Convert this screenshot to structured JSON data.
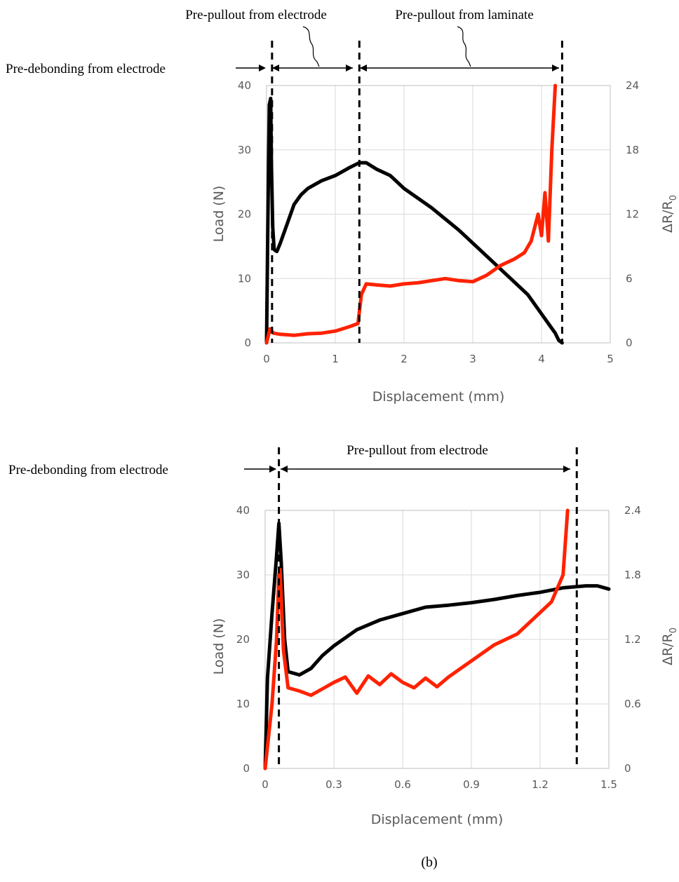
{
  "caption": "(b)",
  "colors": {
    "load": "#000000",
    "resistance": "#ff2200"
  },
  "chart_data": [
    {
      "type": "line",
      "xlabel": "Displacement (mm)",
      "ylabel": "Load (N)",
      "y2label": "ΔR/R",
      "y2label_sub": "0",
      "xlim": [
        0,
        5
      ],
      "ylim": [
        0,
        40
      ],
      "y2lim": [
        0,
        24
      ],
      "xticks": [
        "0",
        "1",
        "2",
        "3",
        "4",
        "5"
      ],
      "yticks": [
        "0",
        "10",
        "20",
        "30",
        "40"
      ],
      "y2ticks": [
        "0",
        "6",
        "12",
        "18",
        "24"
      ],
      "grid": true,
      "vlines": [
        0.08,
        1.35,
        4.3
      ],
      "annotations": [
        {
          "text": "Pre-debonding from electrode"
        },
        {
          "text": "Pre-pullout from electrode"
        },
        {
          "text": "Pre-pullout from laminate"
        }
      ],
      "series": [
        {
          "axis": "left",
          "color": "#000000",
          "x": [
            0,
            0.02,
            0.04,
            0.06,
            0.07,
            0.09,
            0.11,
            0.15,
            0.2,
            0.3,
            0.4,
            0.5,
            0.6,
            0.8,
            1.0,
            1.2,
            1.35,
            1.45,
            1.6,
            1.8,
            2.0,
            2.4,
            2.8,
            3.2,
            3.6,
            3.8,
            4.0,
            4.1,
            4.2,
            4.25,
            4.3
          ],
          "y": [
            0,
            20,
            37,
            38,
            28,
            18,
            14.5,
            14.2,
            15.5,
            18.5,
            21.5,
            23,
            24,
            25.2,
            26,
            27.2,
            28,
            28,
            27,
            26,
            24,
            21,
            17.5,
            13.5,
            9.5,
            7.5,
            4.5,
            3,
            1.5,
            0.4,
            0
          ]
        },
        {
          "axis": "right",
          "color": "#ff2200",
          "x": [
            0,
            0.05,
            0.1,
            0.2,
            0.4,
            0.6,
            0.8,
            1.0,
            1.2,
            1.33,
            1.38,
            1.45,
            1.6,
            1.8,
            2.0,
            2.2,
            2.4,
            2.6,
            2.8,
            3.0,
            3.2,
            3.4,
            3.6,
            3.75,
            3.85,
            3.95,
            4.0,
            4.05,
            4.1,
            4.15,
            4.2
          ],
          "y": [
            0,
            1.3,
            0.9,
            0.8,
            0.7,
            0.85,
            0.9,
            1.1,
            1.5,
            1.8,
            4.5,
            5.5,
            5.4,
            5.3,
            5.5,
            5.6,
            5.8,
            6.0,
            5.8,
            5.7,
            6.3,
            7.2,
            7.8,
            8.4,
            9.5,
            12,
            10,
            14,
            9.5,
            18,
            24
          ]
        }
      ]
    },
    {
      "type": "line",
      "xlabel": "Displacement (mm)",
      "ylabel": "Load (N)",
      "y2label": "ΔR/R",
      "y2label_sub": "0",
      "xlim": [
        0,
        1.5
      ],
      "ylim": [
        0,
        40
      ],
      "y2lim": [
        0,
        2.4
      ],
      "xticks": [
        "0",
        "0.3",
        "0.6",
        "0.9",
        "1.2",
        "1.5"
      ],
      "yticks": [
        "0",
        "10",
        "20",
        "30",
        "40"
      ],
      "y2ticks": [
        "0",
        "0.6",
        "1.2",
        "1.8",
        "2.4"
      ],
      "grid": true,
      "vlines": [
        0.06,
        1.36
      ],
      "annotations": [
        {
          "text": "Pre-debonding from electrode"
        },
        {
          "text": "Pre-pullout from electrode"
        }
      ],
      "series": [
        {
          "axis": "left",
          "color": "#000000",
          "x": [
            0,
            0.01,
            0.03,
            0.05,
            0.06,
            0.07,
            0.085,
            0.1,
            0.15,
            0.2,
            0.25,
            0.3,
            0.4,
            0.5,
            0.6,
            0.7,
            0.8,
            0.9,
            1.0,
            1.1,
            1.2,
            1.3,
            1.4,
            1.45,
            1.5
          ],
          "y": [
            0,
            14,
            24,
            33,
            38,
            32,
            20,
            15,
            14.5,
            15.5,
            17.5,
            19,
            21.5,
            23,
            24,
            25,
            25.3,
            25.7,
            26.2,
            26.8,
            27.3,
            28,
            28.3,
            28.3,
            27.8
          ]
        },
        {
          "axis": "right",
          "color": "#ff2200",
          "x": [
            0,
            0.03,
            0.05,
            0.06,
            0.065,
            0.08,
            0.1,
            0.15,
            0.2,
            0.25,
            0.3,
            0.35,
            0.4,
            0.45,
            0.5,
            0.55,
            0.6,
            0.65,
            0.7,
            0.75,
            0.8,
            0.9,
            1.0,
            1.1,
            1.2,
            1.25,
            1.3,
            1.32
          ],
          "y": [
            0,
            0.6,
            1.2,
            1.8,
            1.85,
            1.1,
            0.75,
            0.72,
            0.68,
            0.74,
            0.8,
            0.85,
            0.7,
            0.86,
            0.78,
            0.88,
            0.8,
            0.75,
            0.84,
            0.76,
            0.85,
            1.0,
            1.15,
            1.25,
            1.45,
            1.55,
            1.8,
            2.4
          ]
        }
      ]
    }
  ]
}
